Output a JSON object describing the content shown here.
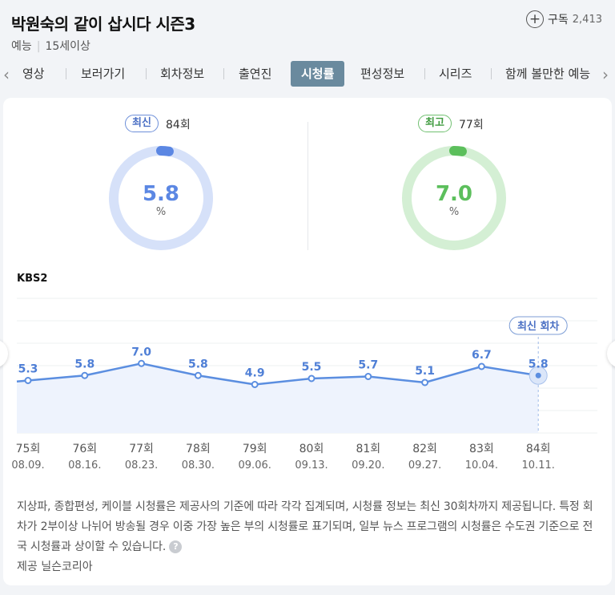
{
  "program": {
    "title": "박원숙의 같이 삽시다 시즌3",
    "genre": "예능",
    "rating": "15세이상",
    "subscribe_label": "구독",
    "subscribe_count": "2,413"
  },
  "tabs": [
    {
      "label": "영상",
      "active": false
    },
    {
      "label": "보러가기",
      "active": false
    },
    {
      "label": "회차정보",
      "active": false
    },
    {
      "label": "출연진",
      "active": false
    },
    {
      "label": "시청률",
      "active": true
    },
    {
      "label": "편성정보",
      "active": false
    },
    {
      "label": "시리즈",
      "active": false
    },
    {
      "label": "함께 볼만한 예능",
      "active": false
    }
  ],
  "gauges": {
    "latest": {
      "badge": "최신",
      "episode": "84회",
      "value": "5.8",
      "unit": "%",
      "color": "#5b87e3",
      "track": "#d6e1f9",
      "fraction": 0.058
    },
    "highest": {
      "badge": "최고",
      "episode": "77회",
      "value": "7.0",
      "unit": "%",
      "color": "#5cbf5c",
      "track": "#d4efd4",
      "fraction": 0.07
    }
  },
  "channel": "KBS2",
  "chart_data": {
    "type": "line",
    "x": [
      {
        "episode": "75회",
        "date": "08.09."
      },
      {
        "episode": "76회",
        "date": "08.16."
      },
      {
        "episode": "77회",
        "date": "08.23."
      },
      {
        "episode": "78회",
        "date": "08.30."
      },
      {
        "episode": "79회",
        "date": "09.06."
      },
      {
        "episode": "80회",
        "date": "09.13."
      },
      {
        "episode": "81회",
        "date": "09.20."
      },
      {
        "episode": "82회",
        "date": "09.27."
      },
      {
        "episode": "83회",
        "date": "10.04."
      },
      {
        "episode": "84회",
        "date": "10.11."
      }
    ],
    "values": [
      5.3,
      5.8,
      7.0,
      5.8,
      4.9,
      5.5,
      5.7,
      5.1,
      6.7,
      5.8
    ],
    "data_labels": [
      "5.3",
      "5.8",
      "7.0",
      "5.8",
      "4.9",
      "5.5",
      "5.7",
      "5.1",
      "6.7",
      "5.8"
    ],
    "highlight_label": "최신 회차",
    "line_color": "#5b8ee0",
    "area_color": "#eef3fd",
    "grid": true
  },
  "notice": "지상파, 종합편성, 케이블 시청률은 제공사의 기준에 따라 각각 집계되며, 시청률 정보는 최신 30회차까지 제공됩니다. 특정 회차가 2부이상 나뉘어 방송될 경우 이중 가장 높은 부의 시청률로 표기되며, 일부 뉴스 프로그램의 시청률은 수도권 기준으로 전국 시청률과 상이할 수 있습니다.",
  "help_icon_text": "?",
  "provider": "제공 닐슨코리아"
}
